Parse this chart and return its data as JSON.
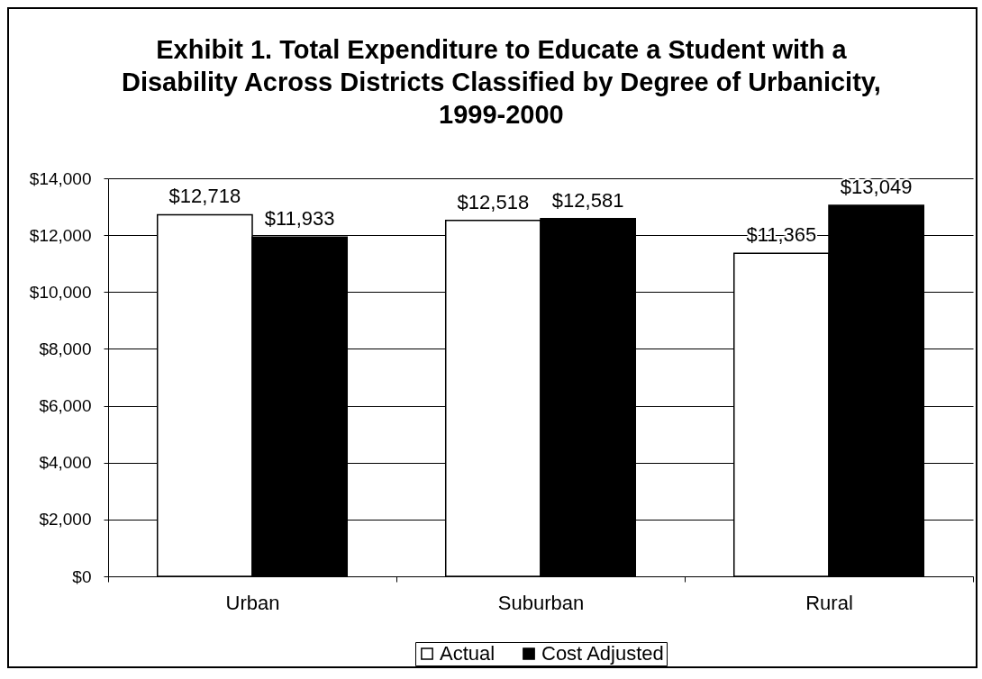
{
  "chart_data": {
    "type": "bar",
    "title": "Exhibit 1. Total Expenditure to Educate a Student with a Disability Across Districts Classified by Degree of Urbanicity, 1999-2000",
    "categories": [
      "Urban",
      "Suburban",
      "Rural"
    ],
    "series": [
      {
        "name": "Actual",
        "color": "#ffffff",
        "values": [
          12718,
          12518,
          11365
        ],
        "value_labels": [
          "$12,718",
          "$12,518",
          "$11,365"
        ]
      },
      {
        "name": "Cost Adjusted",
        "color": "#000000",
        "values": [
          11933,
          12581,
          13049
        ],
        "value_labels": [
          "$11,933",
          "$12,581",
          "$13,049"
        ]
      }
    ],
    "ylim": [
      0,
      14000
    ],
    "yticks": [
      {
        "value": 0,
        "label": "$0"
      },
      {
        "value": 2000,
        "label": "$2,000"
      },
      {
        "value": 4000,
        "label": "$4,000"
      },
      {
        "value": 6000,
        "label": "$6,000"
      },
      {
        "value": 8000,
        "label": "$8,000"
      },
      {
        "value": 10000,
        "label": "$10,000"
      },
      {
        "value": 12000,
        "label": "$12,000"
      },
      {
        "value": 14000,
        "label": "$14,000"
      }
    ],
    "grid": "y",
    "legend": "bottom"
  }
}
